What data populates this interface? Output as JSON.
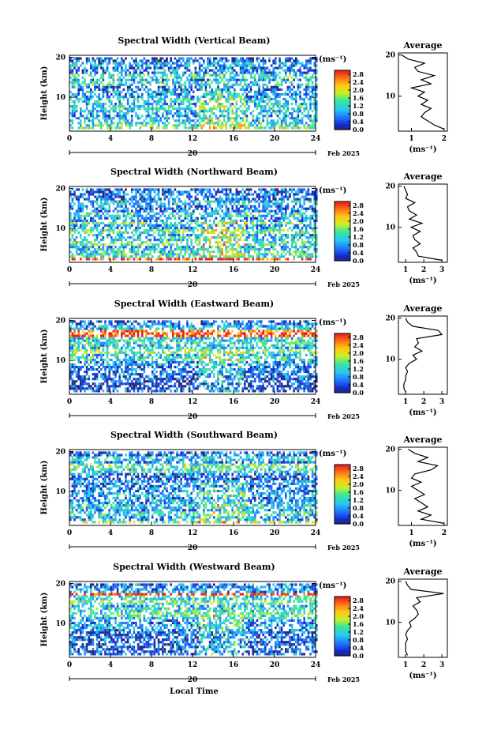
{
  "figure": {
    "xlabel": "Local Time",
    "date_label": "Feb 2025",
    "day_label": "20",
    "ylabel": "Height (km)",
    "cbar_unit": "(ms⁻¹)",
    "avg_title": "Average",
    "avg_xlabel": "(ms⁻¹)"
  },
  "chart_data": [
    {
      "type": "heatmap",
      "title": "Spectral Width (Vertical Beam)",
      "xlabel": "Local Time",
      "ylabel": "Height (km)",
      "x_ticks": [
        0,
        4,
        8,
        12,
        16,
        20,
        24
      ],
      "xlim": [
        0,
        24
      ],
      "y_ticks": [
        10,
        20
      ],
      "ylim": [
        1.5,
        20.5
      ],
      "colorbar": {
        "label": "(ms⁻¹)",
        "ticks": [
          0.0,
          0.4,
          0.8,
          1.2,
          1.6,
          2.0,
          2.4,
          2.8
        ],
        "range": [
          0.0,
          3.0
        ]
      },
      "profile": {
        "title": "Average",
        "xlabel": "(ms⁻¹)",
        "x_ticks": [
          1,
          2
        ],
        "xlim": [
          0.6,
          2.1
        ],
        "heights": [
          2,
          3,
          4,
          5,
          6,
          7,
          8,
          9,
          10,
          11,
          12,
          13,
          14,
          15,
          16,
          17,
          18,
          19,
          20
        ],
        "values": [
          2.0,
          1.7,
          1.5,
          1.3,
          1.4,
          1.6,
          1.3,
          1.5,
          1.2,
          1.4,
          1.0,
          1.6,
          1.3,
          1.7,
          1.2,
          1.1,
          1.4,
          0.9,
          0.7
        ]
      }
    },
    {
      "type": "heatmap",
      "title": "Spectral Width (Northward Beam)",
      "xlabel": "Local Time",
      "ylabel": "Height (km)",
      "x_ticks": [
        0,
        4,
        8,
        12,
        16,
        20,
        24
      ],
      "xlim": [
        0,
        24
      ],
      "y_ticks": [
        10,
        20
      ],
      "ylim": [
        1.5,
        20.5
      ],
      "colorbar": {
        "label": "(ms⁻¹)",
        "ticks": [
          0.0,
          0.4,
          0.8,
          1.2,
          1.6,
          2.0,
          2.4,
          2.8
        ],
        "range": [
          0.0,
          3.0
        ]
      },
      "profile": {
        "title": "Average",
        "xlabel": "(ms⁻¹)",
        "x_ticks": [
          1,
          2,
          3
        ],
        "xlim": [
          0.6,
          3.3
        ],
        "heights": [
          2,
          3,
          4,
          5,
          6,
          7,
          8,
          9,
          10,
          11,
          12,
          13,
          14,
          15,
          16,
          17,
          18,
          19,
          20
        ],
        "values": [
          3.0,
          1.7,
          1.6,
          1.4,
          1.8,
          1.5,
          1.4,
          1.8,
          1.3,
          1.9,
          1.2,
          1.6,
          1.2,
          1.1,
          1.5,
          1.0,
          1.1,
          1.0,
          0.9
        ]
      }
    },
    {
      "type": "heatmap",
      "title": "Spectral Width (Eastward Beam)",
      "xlabel": "Local Time",
      "ylabel": "Height (km)",
      "x_ticks": [
        0,
        4,
        8,
        12,
        16,
        20,
        24
      ],
      "xlim": [
        0,
        24
      ],
      "y_ticks": [
        10,
        20
      ],
      "ylim": [
        1.5,
        20.5
      ],
      "colorbar": {
        "label": "(ms⁻¹)",
        "ticks": [
          0.0,
          0.4,
          0.8,
          1.2,
          1.6,
          2.0,
          2.4,
          2.8
        ],
        "range": [
          0.0,
          3.0
        ]
      },
      "profile": {
        "title": "Average",
        "xlabel": "(ms⁻¹)",
        "x_ticks": [
          1,
          2,
          3
        ],
        "xlim": [
          0.6,
          3.3
        ],
        "heights": [
          2,
          3,
          4,
          5,
          6,
          7,
          8,
          9,
          10,
          11,
          12,
          13,
          14,
          15,
          16,
          17,
          18,
          19,
          20
        ],
        "values": [
          1.0,
          0.9,
          0.9,
          1.0,
          1.0,
          1.1,
          1.0,
          1.2,
          1.6,
          1.4,
          1.9,
          1.5,
          1.7,
          1.6,
          3.0,
          2.8,
          1.4,
          1.1,
          1.0
        ]
      }
    },
    {
      "type": "heatmap",
      "title": "Spectral Width (Southward Beam)",
      "xlabel": "Local Time",
      "ylabel": "Height (km)",
      "x_ticks": [
        0,
        4,
        8,
        12,
        16,
        20,
        24
      ],
      "xlim": [
        0,
        24
      ],
      "y_ticks": [
        10,
        20
      ],
      "ylim": [
        1.5,
        20.5
      ],
      "colorbar": {
        "label": "(ms⁻¹)",
        "ticks": [
          0.0,
          0.4,
          0.8,
          1.2,
          1.6,
          2.0,
          2.4,
          2.8
        ],
        "range": [
          0.0,
          3.0
        ]
      },
      "profile": {
        "title": "Average",
        "xlabel": "(ms⁻¹)",
        "x_ticks": [
          1,
          2
        ],
        "xlim": [
          0.6,
          2.1
        ],
        "heights": [
          2,
          3,
          4,
          5,
          6,
          7,
          8,
          9,
          10,
          11,
          12,
          13,
          14,
          15,
          16,
          17,
          18,
          19,
          20
        ],
        "values": [
          2.0,
          1.3,
          1.6,
          1.2,
          1.5,
          1.3,
          1.1,
          1.4,
          1.2,
          1.0,
          1.3,
          1.0,
          1.1,
          1.6,
          1.8,
          1.2,
          1.5,
          1.1,
          0.9
        ]
      }
    },
    {
      "type": "heatmap",
      "title": "Spectral Width (Westward Beam)",
      "xlabel": "Local Time",
      "ylabel": "Height (km)",
      "x_ticks": [
        0,
        4,
        8,
        12,
        16,
        20,
        24
      ],
      "xlim": [
        0,
        24
      ],
      "y_ticks": [
        10,
        20
      ],
      "ylim": [
        1.5,
        20.5
      ],
      "colorbar": {
        "label": "(ms⁻¹)",
        "ticks": [
          0.0,
          0.4,
          0.8,
          1.2,
          1.6,
          2.0,
          2.4,
          2.8
        ],
        "range": [
          0.0,
          3.0
        ]
      },
      "profile": {
        "title": "Average",
        "xlabel": "(ms⁻¹)",
        "x_ticks": [
          1,
          2,
          3
        ],
        "xlim": [
          0.6,
          3.3
        ],
        "heights": [
          2,
          3,
          4,
          5,
          6,
          7,
          8,
          9,
          10,
          11,
          12,
          13,
          14,
          15,
          16,
          17,
          18,
          19,
          20
        ],
        "values": [
          1.1,
          1.0,
          1.0,
          1.0,
          1.1,
          1.0,
          1.1,
          1.3,
          1.2,
          1.5,
          1.7,
          1.6,
          1.4,
          1.8,
          1.6,
          3.1,
          1.3,
          1.1,
          1.0
        ]
      }
    }
  ]
}
